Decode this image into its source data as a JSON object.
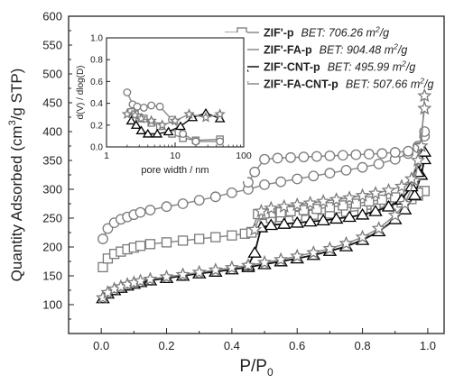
{
  "chart_data": {
    "type": "scatter",
    "main": {
      "xlabel_base": "P/P",
      "xlabel_sub": "0",
      "ylabel_pre": "Quantity Adsorbed (cm",
      "ylabel_sup": "3",
      "ylabel_post": "/g STP)",
      "xlim": [
        -0.1,
        1.05
      ],
      "ylim": [
        50,
        600
      ],
      "xticks": [
        "0.0",
        "0.2",
        "0.4",
        "0.6",
        "0.8",
        "1.0"
      ],
      "yticks": [
        "100",
        "150",
        "200",
        "250",
        "300",
        "350",
        "400",
        "450",
        "500",
        "550",
        "600"
      ],
      "series": [
        {
          "name": "ZIF'-p",
          "bet_label": "BET: 706.26 m",
          "bet_sup": "2",
          "bet_unit": "/g",
          "marker": "square",
          "adsorption": [
            [
              0.005,
              165
            ],
            [
              0.02,
              180
            ],
            [
              0.04,
              188
            ],
            [
              0.06,
              192
            ],
            [
              0.08,
              196
            ],
            [
              0.1,
              199
            ],
            [
              0.12,
              202
            ],
            [
              0.15,
              205
            ],
            [
              0.2,
              208
            ],
            [
              0.25,
              211
            ],
            [
              0.3,
              214
            ],
            [
              0.35,
              217
            ],
            [
              0.4,
              220
            ],
            [
              0.44,
              223
            ],
            [
              0.46,
              226
            ],
            [
              0.5,
              240
            ],
            [
              0.52,
              250
            ],
            [
              0.55,
              252
            ],
            [
              0.6,
              254
            ],
            [
              0.65,
              256
            ],
            [
              0.7,
              258
            ],
            [
              0.75,
              261
            ],
            [
              0.8,
              264
            ],
            [
              0.84,
              267
            ],
            [
              0.88,
              271
            ],
            [
              0.92,
              277
            ],
            [
              0.95,
              283
            ],
            [
              0.97,
              289
            ],
            [
              0.99,
              297
            ]
          ],
          "desorption": [
            [
              0.99,
              297
            ],
            [
              0.97,
              294
            ],
            [
              0.94,
              290
            ],
            [
              0.9,
              286
            ],
            [
              0.86,
              282
            ],
            [
              0.82,
              279
            ],
            [
              0.78,
              275
            ],
            [
              0.74,
              272
            ],
            [
              0.7,
              269
            ],
            [
              0.66,
              266
            ],
            [
              0.62,
              264
            ],
            [
              0.58,
              262
            ],
            [
              0.55,
              260
            ],
            [
              0.52,
              259
            ],
            [
              0.5,
              258
            ],
            [
              0.48,
              257
            ],
            [
              0.46,
              225
            ]
          ]
        },
        {
          "name": "ZIF'-FA-p",
          "bet_label": "BET: 904.48 m",
          "bet_sup": "2",
          "bet_unit": "/g",
          "marker": "circle",
          "adsorption": [
            [
              0.005,
              214
            ],
            [
              0.02,
              232
            ],
            [
              0.04,
              242
            ],
            [
              0.06,
              248
            ],
            [
              0.08,
              252
            ],
            [
              0.1,
              256
            ],
            [
              0.12,
              260
            ],
            [
              0.15,
              264
            ],
            [
              0.2,
              270
            ],
            [
              0.25,
              275
            ],
            [
              0.3,
              281
            ],
            [
              0.35,
              287
            ],
            [
              0.4,
              294
            ],
            [
              0.45,
              300
            ],
            [
              0.5,
              308
            ],
            [
              0.55,
              313
            ],
            [
              0.6,
              318
            ],
            [
              0.65,
              323
            ],
            [
              0.7,
              328
            ],
            [
              0.75,
              333
            ],
            [
              0.8,
              338
            ],
            [
              0.85,
              344
            ],
            [
              0.9,
              352
            ],
            [
              0.94,
              362
            ],
            [
              0.97,
              375
            ],
            [
              0.99,
              392
            ]
          ],
          "desorption": [
            [
              0.99,
              400
            ],
            [
              0.97,
              372
            ],
            [
              0.94,
              366
            ],
            [
              0.9,
              364
            ],
            [
              0.86,
              362
            ],
            [
              0.82,
              361
            ],
            [
              0.78,
              360
            ],
            [
              0.74,
              359
            ],
            [
              0.7,
              358
            ],
            [
              0.66,
              357
            ],
            [
              0.62,
              356
            ],
            [
              0.58,
              355
            ],
            [
              0.54,
              354
            ],
            [
              0.5,
              352
            ],
            [
              0.47,
              330
            ],
            [
              0.45,
              312
            ]
          ]
        },
        {
          "name": "ZIF'-CNT-p",
          "bet_label": "BET: 495.99 m",
          "bet_sup": "2",
          "bet_unit": "/g",
          "marker": "triangle",
          "adsorption": [
            [
              0.005,
              111
            ],
            [
              0.02,
              119
            ],
            [
              0.04,
              125
            ],
            [
              0.06,
              129
            ],
            [
              0.08,
              133
            ],
            [
              0.1,
              136
            ],
            [
              0.12,
              139
            ],
            [
              0.15,
              142
            ],
            [
              0.2,
              146
            ],
            [
              0.25,
              150
            ],
            [
              0.3,
              154
            ],
            [
              0.35,
              157
            ],
            [
              0.4,
              161
            ],
            [
              0.45,
              165
            ],
            [
              0.5,
              170
            ],
            [
              0.55,
              175
            ],
            [
              0.6,
              180
            ],
            [
              0.65,
              186
            ],
            [
              0.7,
              193
            ],
            [
              0.75,
              201
            ],
            [
              0.8,
              212
            ],
            [
              0.85,
              227
            ],
            [
              0.9,
              248
            ],
            [
              0.93,
              265
            ],
            [
              0.96,
              290
            ],
            [
              0.98,
              325
            ],
            [
              0.99,
              352
            ]
          ],
          "desorption": [
            [
              0.99,
              365
            ],
            [
              0.97,
              330
            ],
            [
              0.95,
              305
            ],
            [
              0.92,
              282
            ],
            [
              0.88,
              270
            ],
            [
              0.84,
              262
            ],
            [
              0.8,
              256
            ],
            [
              0.76,
              252
            ],
            [
              0.72,
              249
            ],
            [
              0.68,
              246
            ],
            [
              0.64,
              244
            ],
            [
              0.6,
              242
            ],
            [
              0.56,
              240
            ],
            [
              0.52,
              238
            ],
            [
              0.49,
              234
            ],
            [
              0.47,
              190
            ],
            [
              0.45,
              168
            ]
          ]
        },
        {
          "name": "ZIF'-FA-CNT-p",
          "bet_label": "BET: 507.66 m",
          "bet_sup": "2",
          "bet_unit": "/g",
          "marker": "star",
          "adsorption": [
            [
              0.005,
              112
            ],
            [
              0.02,
              121
            ],
            [
              0.04,
              127
            ],
            [
              0.06,
              131
            ],
            [
              0.08,
              135
            ],
            [
              0.1,
              138
            ],
            [
              0.12,
              141
            ],
            [
              0.15,
              144
            ],
            [
              0.2,
              148
            ],
            [
              0.25,
              152
            ],
            [
              0.3,
              156
            ],
            [
              0.35,
              160
            ],
            [
              0.4,
              164
            ],
            [
              0.45,
              168
            ],
            [
              0.5,
              173
            ],
            [
              0.55,
              178
            ],
            [
              0.6,
              184
            ],
            [
              0.65,
              190
            ],
            [
              0.7,
              197
            ],
            [
              0.75,
              206
            ],
            [
              0.8,
              217
            ],
            [
              0.85,
              232
            ],
            [
              0.9,
              255
            ],
            [
              0.93,
              275
            ],
            [
              0.96,
              315
            ],
            [
              0.98,
              375
            ],
            [
              0.99,
              462
            ]
          ],
          "desorption": [
            [
              0.99,
              440
            ],
            [
              0.97,
              350
            ],
            [
              0.95,
              318
            ],
            [
              0.92,
              305
            ],
            [
              0.88,
              298
            ],
            [
              0.84,
              293
            ],
            [
              0.8,
              289
            ],
            [
              0.76,
              285
            ],
            [
              0.72,
              282
            ],
            [
              0.68,
              279
            ],
            [
              0.64,
              276
            ],
            [
              0.6,
              273
            ],
            [
              0.56,
              270
            ],
            [
              0.52,
              267
            ],
            [
              0.49,
              262
            ],
            [
              0.47,
              230
            ]
          ]
        }
      ]
    },
    "inset": {
      "xlabel": "pore width / nm",
      "ylabel": "d(V) / dlog(D)",
      "xscale": "log",
      "xlim": [
        1,
        100
      ],
      "ylim": [
        0,
        1.0
      ],
      "xticks": [
        "1",
        "10",
        "100"
      ],
      "yticks": [
        "0.0",
        "0.2",
        "0.4",
        "0.6",
        "0.8",
        "1.0"
      ],
      "series": [
        {
          "name": "ZIF'-p",
          "marker": "square",
          "points": [
            [
              2.3,
              0.32
            ],
            [
              2.6,
              0.3
            ],
            [
              3.0,
              0.27
            ],
            [
              3.5,
              0.26
            ],
            [
              4.5,
              0.22
            ],
            [
              6.0,
              0.19
            ],
            [
              9,
              0.12
            ],
            [
              13,
              0.08
            ],
            [
              20,
              0.06
            ],
            [
              45,
              0.07
            ]
          ]
        },
        {
          "name": "ZIF'-FA-p",
          "marker": "circle",
          "points": [
            [
              2.0,
              0.5
            ],
            [
              2.4,
              0.39
            ],
            [
              2.8,
              0.37
            ],
            [
              3.5,
              0.36
            ],
            [
              4.5,
              0.38
            ],
            [
              6.0,
              0.37
            ],
            [
              9,
              0.25
            ],
            [
              13,
              0.12
            ],
            [
              20,
              0.05
            ],
            [
              45,
              0.05
            ]
          ]
        },
        {
          "name": "ZIF'-CNT-p",
          "marker": "triangle",
          "points": [
            [
              2.3,
              0.24
            ],
            [
              2.7,
              0.2
            ],
            [
              3.2,
              0.15
            ],
            [
              4.0,
              0.12
            ],
            [
              5.5,
              0.12
            ],
            [
              8,
              0.14
            ],
            [
              12,
              0.19
            ],
            [
              18,
              0.27
            ],
            [
              28,
              0.31
            ],
            [
              45,
              0.26
            ]
          ]
        },
        {
          "name": "ZIF'-FA-CNT-p",
          "marker": "star",
          "points": [
            [
              2.0,
              0.3
            ],
            [
              2.6,
              0.29
            ],
            [
              3.2,
              0.26
            ],
            [
              4.5,
              0.24
            ],
            [
              6.5,
              0.2
            ],
            [
              10,
              0.24
            ],
            [
              16,
              0.3
            ],
            [
              28,
              0.27
            ],
            [
              45,
              0.3
            ]
          ]
        }
      ]
    }
  }
}
